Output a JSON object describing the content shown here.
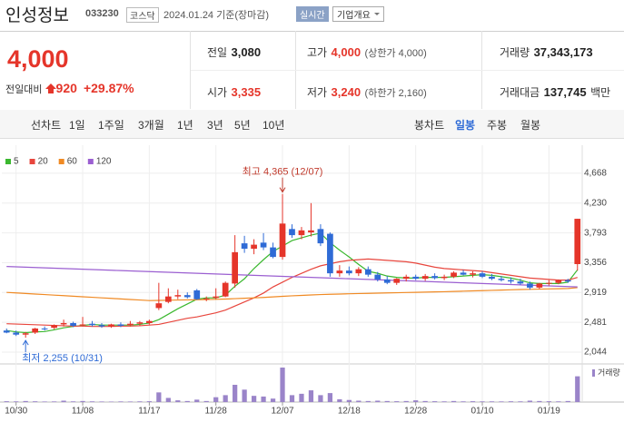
{
  "header": {
    "name": "인성정보",
    "code": "033230",
    "market": "코스닥",
    "date": "2024.01.24 기준(장마감)",
    "realtime": "실시간",
    "overview": "기업개요"
  },
  "price": {
    "current": "4,000",
    "change_label": "전일대비",
    "change": "920",
    "change_rate": "+29.87%"
  },
  "stats": [
    {
      "label": "전일",
      "value": "3,080"
    },
    {
      "label": "고가",
      "value": "4,000",
      "note": "(상한가 4,000)"
    },
    {
      "label": "거래량",
      "value": "37,343,173"
    },
    {
      "label": "시가",
      "value": "3,335"
    },
    {
      "label": "저가",
      "value": "3,240",
      "note": "(하한가 2,160)"
    },
    {
      "label": "거래대금",
      "value": "137,745",
      "unit": "백만"
    }
  ],
  "tabs": {
    "line_chart": "선차트",
    "periods": [
      "1일",
      "1주일",
      "3개월",
      "1년",
      "3년",
      "5년",
      "10년"
    ],
    "candle_chart": "봉차트",
    "candle_periods": [
      "일봉",
      "주봉",
      "월봉"
    ]
  },
  "chart_data": {
    "type": "candlestick",
    "categories": [
      null,
      "10/30",
      null,
      null,
      null,
      null,
      null,
      null,
      "11/08",
      null,
      null,
      null,
      null,
      null,
      null,
      "11/17",
      null,
      null,
      null,
      null,
      null,
      null,
      "11/28",
      null,
      null,
      null,
      null,
      null,
      null,
      "12/07",
      null,
      null,
      null,
      null,
      null,
      null,
      "12/18",
      null,
      null,
      null,
      null,
      null,
      null,
      "12/28",
      null,
      null,
      null,
      null,
      null,
      null,
      "01/10",
      null,
      null,
      null,
      null,
      null,
      null,
      "01/19",
      null,
      null,
      null
    ],
    "open": [
      2360,
      2330,
      2300,
      2330,
      2390,
      2400,
      2450,
      2470,
      2440,
      2460,
      2440,
      2420,
      2450,
      2440,
      2460,
      2470,
      2690,
      2780,
      2860,
      2880,
      2950,
      2820,
      2840,
      2860,
      3050,
      3640,
      3560,
      3650,
      3580,
      3440,
      3850,
      3760,
      3800,
      3850,
      3780,
      3200,
      3240,
      3200,
      3260,
      3180,
      3110,
      3060,
      3120,
      3150,
      3120,
      3160,
      3130,
      3150,
      3210,
      3180,
      3200,
      3150,
      3120,
      3100,
      3080,
      3050,
      2990,
      3050,
      3060,
      3100,
      3335
    ],
    "high": [
      2390,
      2360,
      2340,
      2400,
      2420,
      2450,
      2520,
      2490,
      2560,
      2500,
      2470,
      2460,
      2480,
      2500,
      2500,
      2520,
      3060,
      2980,
      2960,
      2920,
      2970,
      2860,
      2980,
      3080,
      3760,
      3750,
      3700,
      3790,
      3650,
      4365,
      3920,
      3880,
      4230,
      3920,
      3800,
      3320,
      3300,
      3290,
      3300,
      3220,
      3160,
      3130,
      3180,
      3180,
      3190,
      3200,
      3180,
      3230,
      3250,
      3230,
      3230,
      3190,
      3160,
      3140,
      3120,
      3080,
      3060,
      3100,
      3110,
      3120,
      4000
    ],
    "low": [
      2320,
      2280,
      2255,
      2310,
      2360,
      2380,
      2420,
      2410,
      2420,
      2420,
      2400,
      2400,
      2410,
      2420,
      2430,
      2450,
      2660,
      2760,
      2820,
      2830,
      2810,
      2790,
      2820,
      2850,
      2990,
      3500,
      3480,
      3540,
      3420,
      3400,
      3720,
      3700,
      3740,
      3600,
      3150,
      3150,
      3170,
      3160,
      3150,
      3080,
      3040,
      3030,
      3080,
      3100,
      3090,
      3110,
      3100,
      3130,
      3170,
      3140,
      3130,
      3100,
      3080,
      3050,
      3030,
      2960,
      2970,
      3020,
      3040,
      3060,
      3240
    ],
    "close": [
      2330,
      2300,
      2320,
      2390,
      2380,
      2440,
      2470,
      2430,
      2450,
      2440,
      2420,
      2450,
      2430,
      2460,
      2480,
      2500,
      2760,
      2860,
      2880,
      2850,
      2820,
      2830,
      2860,
      3060,
      3510,
      3560,
      3620,
      3580,
      3440,
      3930,
      3760,
      3830,
      3830,
      3640,
      3200,
      3240,
      3200,
      3260,
      3180,
      3110,
      3060,
      3120,
      3150,
      3120,
      3160,
      3130,
      3150,
      3210,
      3180,
      3200,
      3150,
      3120,
      3100,
      3080,
      3050,
      2990,
      3050,
      3060,
      3100,
      3080,
      4000
    ],
    "up_color": "#e5352a",
    "down_color": "#2f6bd6",
    "moving_averages": [
      {
        "name": "5",
        "color": "#3bb82f",
        "values": [
          2360,
          2340,
          2330,
          2340,
          2345,
          2370,
          2400,
          2420,
          2435,
          2450,
          2440,
          2440,
          2440,
          2440,
          2450,
          2470,
          2520,
          2600,
          2680,
          2750,
          2820,
          2840,
          2840,
          2880,
          3010,
          3120,
          3270,
          3400,
          3520,
          3600,
          3680,
          3720,
          3760,
          3790,
          3650,
          3540,
          3440,
          3330,
          3230,
          3200,
          3160,
          3140,
          3130,
          3130,
          3140,
          3140,
          3140,
          3150,
          3160,
          3170,
          3180,
          3170,
          3150,
          3130,
          3100,
          3060,
          3050,
          3050,
          3050,
          3070,
          3250
        ]
      },
      {
        "name": "20",
        "color": "#e8463d",
        "values": [
          2460,
          2455,
          2450,
          2445,
          2440,
          2435,
          2430,
          2425,
          2425,
          2420,
          2420,
          2420,
          2425,
          2425,
          2430,
          2440,
          2450,
          2480,
          2510,
          2540,
          2560,
          2590,
          2620,
          2660,
          2720,
          2780,
          2840,
          2910,
          3000,
          3070,
          3140,
          3200,
          3260,
          3310,
          3340,
          3370,
          3390,
          3400,
          3410,
          3400,
          3390,
          3380,
          3370,
          3350,
          3320,
          3290,
          3270,
          3260,
          3250,
          3240,
          3230,
          3210,
          3190,
          3170,
          3150,
          3130,
          3120,
          3110,
          3100,
          3100,
          3140
        ]
      },
      {
        "name": "60",
        "color": "#f08a24",
        "values": [
          2920,
          2912,
          2904,
          2896,
          2888,
          2880,
          2872,
          2864,
          2856,
          2848,
          2840,
          2832,
          2824,
          2816,
          2808,
          2800,
          2802,
          2805,
          2808,
          2810,
          2812,
          2815,
          2818,
          2822,
          2828,
          2834,
          2840,
          2846,
          2854,
          2862,
          2870,
          2876,
          2882,
          2888,
          2892,
          2896,
          2900,
          2903,
          2906,
          2909,
          2912,
          2915,
          2918,
          2921,
          2924,
          2927,
          2930,
          2934,
          2938,
          2942,
          2946,
          2950,
          2954,
          2958,
          2962,
          2965,
          2968,
          2971,
          2974,
          2977,
          2990
        ]
      },
      {
        "name": "120",
        "color": "#9b5fd1",
        "values": [
          3300,
          3295,
          3290,
          3285,
          3280,
          3275,
          3270,
          3265,
          3260,
          3255,
          3250,
          3245,
          3240,
          3235,
          3230,
          3225,
          3220,
          3215,
          3210,
          3205,
          3200,
          3195,
          3190,
          3185,
          3180,
          3175,
          3170,
          3165,
          3160,
          3155,
          3150,
          3145,
          3140,
          3135,
          3130,
          3125,
          3120,
          3115,
          3110,
          3105,
          3100,
          3095,
          3090,
          3085,
          3080,
          3075,
          3070,
          3065,
          3060,
          3055,
          3050,
          3045,
          3040,
          3035,
          3030,
          3025,
          3020,
          3015,
          3010,
          3005,
          3000
        ]
      }
    ],
    "volume": {
      "name": "거래량",
      "color": "#9a84c9",
      "values": [
        1200000,
        1000000,
        1500000,
        1100000,
        800000,
        900000,
        2000000,
        1000000,
        1500000,
        1000000,
        800000,
        700000,
        900000,
        800000,
        1000000,
        1200000,
        14000000,
        6000000,
        2500000,
        1500000,
        3500000,
        1500000,
        7000000,
        10000000,
        25000000,
        18000000,
        9000000,
        8000000,
        5000000,
        50000000,
        10000000,
        12000000,
        17000000,
        10000000,
        13000000,
        4000000,
        3000000,
        2000000,
        1500000,
        2000000,
        1500000,
        1200000,
        1500000,
        2500000,
        1500000,
        1200000,
        1000000,
        1500000,
        1000000,
        1200000,
        1000000,
        1000000,
        900000,
        1100000,
        1000000,
        2000000,
        1500000,
        1200000,
        1000000,
        1500000,
        37343173
      ]
    },
    "annotations": [
      "최고 4,365 (12/07)",
      "최저 2,255 (10/31)"
    ],
    "ylim": [
      1910,
      4920
    ],
    "yticks": [
      {
        "value": 2044,
        "label": "2,044"
      },
      {
        "value": 2481,
        "label": "2,481"
      },
      {
        "value": 2919,
        "label": "2,919"
      },
      {
        "value": 3356,
        "label": "3,356"
      },
      {
        "value": 3793,
        "label": "3,793"
      },
      {
        "value": 4230,
        "label": "4,230"
      },
      {
        "value": 4668,
        "label": "4,668"
      }
    ],
    "grid": true
  }
}
